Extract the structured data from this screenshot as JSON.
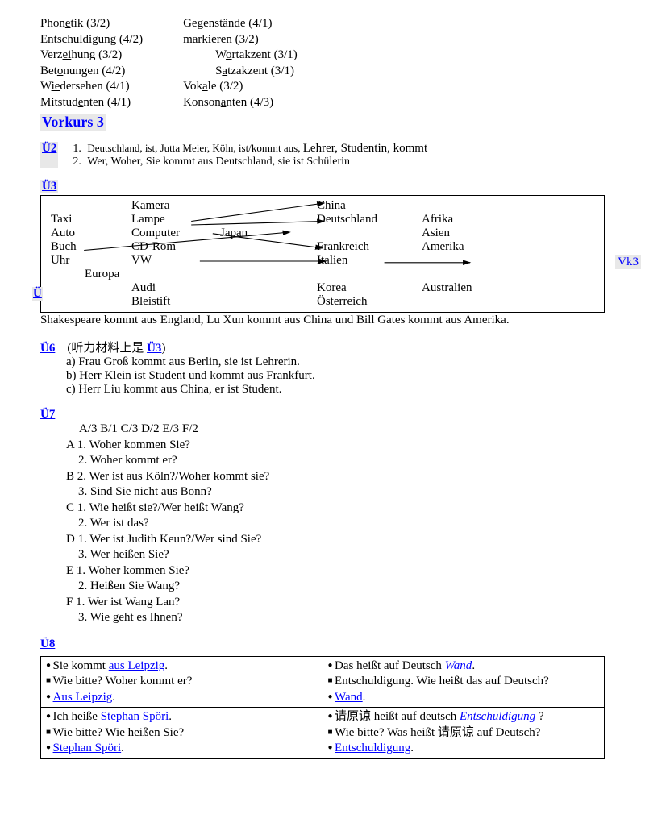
{
  "phonetik": {
    "col1": [
      {
        "pre": "Phon",
        "u": "e",
        "post": "tik (3/2)"
      },
      {
        "pre": "Entsch",
        "u": "u",
        "post": "ldigung (4/2)"
      },
      {
        "pre": "Verz",
        "u": "ei",
        "post": "hung (3/2)"
      },
      {
        "pre": "Bet",
        "u": "o",
        "post": "nungen (4/2)"
      },
      {
        "pre": "W",
        "u": "ie",
        "post": "dersehen (4/1)"
      },
      {
        "pre": "Mitstud",
        "u": "e",
        "post": "nten (4/1)"
      }
    ],
    "col2": [
      {
        "pre": "Ge",
        "u": "g",
        "post": "enstände (4/1)",
        "indent": false
      },
      {
        "pre": "mark",
        "u": "ie",
        "post": "ren (3/2)",
        "indent": false
      },
      {
        "pre": "W",
        "u": "o",
        "post": "rtakzent (3/1)",
        "indent": true
      },
      {
        "pre": "S",
        "u": "a",
        "post": "tzakzent (3/1)",
        "indent": true
      },
      {
        "pre": "Vok",
        "u": "a",
        "post": "le     (3/2)",
        "indent": false
      },
      {
        "pre": "Konson",
        "u": "a",
        "post": "nten (4/3)",
        "indent": false
      }
    ]
  },
  "heading": "Vorkurs 3",
  "vk_tag": "Vk3",
  "u2": {
    "label": "Ü2",
    "l1": "Deutschland, ist, Jutta Meier, Köln, ist/kommt aus, ",
    "l1b": "Lehrer, Studentin, kommt",
    "l2": "Wer, Woher, Sie kommt aus Deutschland, sie ist Schülerin"
  },
  "u3": {
    "label": "Ü3",
    "rows": [
      [
        "",
        "Kamera",
        "",
        "China",
        ""
      ],
      [
        "Taxi",
        "Lampe",
        "",
        "Deutschland",
        "Afrika"
      ],
      [
        "Auto",
        "Computer",
        "Japan",
        "",
        "Asien"
      ],
      [
        "Buch",
        "CD-Rom",
        "",
        "Frankreich",
        "Amerika"
      ],
      [
        "Uhr",
        "VW",
        "",
        "Italien",
        ""
      ],
      [
        "       Europa",
        "",
        "",
        "",
        ""
      ],
      [
        "",
        "Audi",
        "",
        "Korea",
        "Australien"
      ],
      [
        "",
        "Bleistift",
        "",
        "Österreich",
        ""
      ]
    ],
    "u_label": "Ü"
  },
  "shake": "Shakespeare kommt aus England, Lu Xun kommt aus China und Bill Gates kommt aus Amerika.",
  "u6": {
    "label": "Ü6",
    "note_pre": "(听力材料上是 ",
    "note_ref": "Ü3",
    "note_post": ")",
    "a": "a) Frau Groß kommt aus Berlin, sie ist Lehrerin.",
    "b": " b) Herr Klein ist Student und kommt aus Frankfurt.",
    "c": "  c) Herr Liu kommt aus China, er ist Student."
  },
  "u7": {
    "label": "Ü7",
    "head": "A/3   B/1   C/3   D/2   E/3   F/2",
    "lines": [
      "A 1. Woher kommen Sie?",
      "    2. Woher kommt er?",
      "B 2. Wer ist aus Köln?/Woher kommt sie?",
      "    3. Sind Sie nicht aus Bonn?",
      "C 1. Wie heißt sie?/Wer heißt Wang?",
      "    2. Wer ist das?",
      "D 1. Wer ist Judith Keun?/Wer sind Sie?",
      "    3. Wer heißen Sie?",
      "E 1. Woher kommen Sie?",
      "    2. Heißen Sie Wang?",
      "F 1. Wer ist Wang Lan?",
      "    3. Wie geht es Ihnen?"
    ]
  },
  "u8": {
    "label": "Ü8",
    "rows": [
      {
        "left": [
          {
            "cls": "bullet",
            "html": "Sie kommt <span class='blue-link'>aus Leipzig</span>."
          },
          {
            "cls": "square",
            "html": "Wie bitte? Woher kommt er?"
          },
          {
            "cls": "bullet",
            "html": "<span class='blue-link'>Aus Leipzig</span>."
          }
        ],
        "right": [
          {
            "cls": "bullet",
            "html": "  Das heißt auf Deutsch <span class='blue-italic'>Wand</span>."
          },
          {
            "cls": "square",
            "html": "Entschuldigung. Wie heißt das auf Deutsch?"
          },
          {
            "cls": "bullet",
            "html": "<span class='blue-link'>Wand</span>."
          }
        ]
      },
      {
        "left": [
          {
            "cls": "bullet",
            "html": "Ich heiße <span class='blue-link'>Stephan Spöri</span>."
          },
          {
            "cls": "square",
            "html": "Wie bitte? Wie heißen Sie?"
          },
          {
            "cls": "bullet",
            "html": "<span class='blue-link'>Stephan Spöri</span>."
          }
        ],
        "right": [
          {
            "cls": "bullet",
            "html": "请原谅 heißt auf deutsch <span class='blue-italic'>Entschuldigung</span> ?"
          },
          {
            "cls": "square",
            "html": "Wie bitte? Was heißt 请原谅  auf Deutsch?"
          },
          {
            "cls": "bullet",
            "html": "<span class='blue-link'>Entschuldigung</span>."
          }
        ]
      }
    ]
  }
}
